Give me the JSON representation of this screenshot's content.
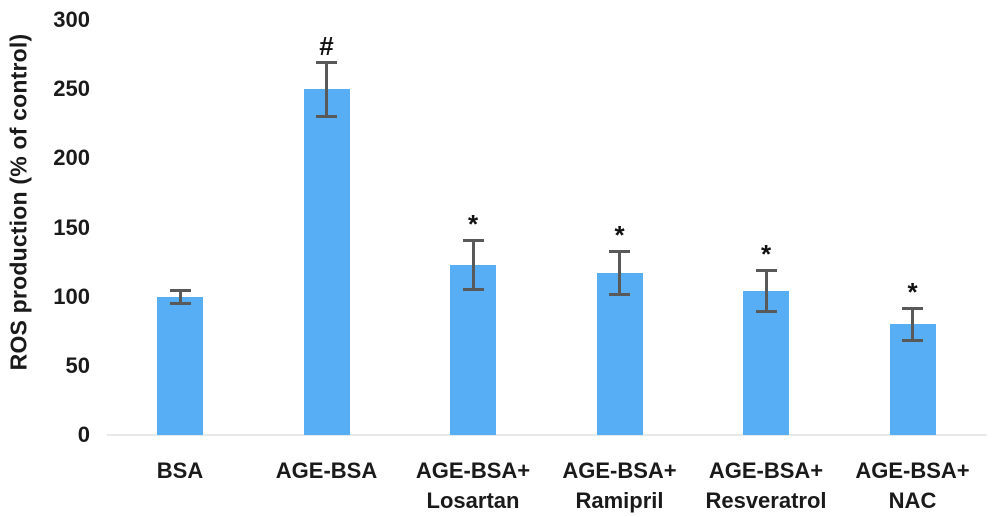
{
  "chart_data": {
    "type": "bar",
    "title": "",
    "ylabel": "ROS production (% of control)",
    "xlabel": "",
    "ylim": [
      0,
      300
    ],
    "yticks": [
      0,
      50,
      100,
      150,
      200,
      250,
      300
    ],
    "categories": [
      [
        "BSA"
      ],
      [
        "AGE-BSA"
      ],
      [
        "AGE-BSA+",
        "Losartan"
      ],
      [
        "AGE-BSA+",
        "Ramipril"
      ],
      [
        "AGE-BSA+",
        "Resveratrol"
      ],
      [
        "AGE-BSA+",
        "NAC"
      ]
    ],
    "series": [
      {
        "name": "ROS production",
        "values": [
          100,
          250,
          123,
          117,
          104,
          80
        ],
        "errors": [
          5,
          20,
          18,
          16,
          15,
          12
        ]
      }
    ],
    "annotations": [
      "",
      "#",
      "*",
      "*",
      "*",
      "*"
    ],
    "legend": null,
    "grid": false,
    "colors": {
      "bar": "#58AEF5",
      "error_bar": "#595959",
      "axis_line": "#E7E9E9",
      "text": "#1A1A1A",
      "background": "#FFFFFF"
    }
  }
}
